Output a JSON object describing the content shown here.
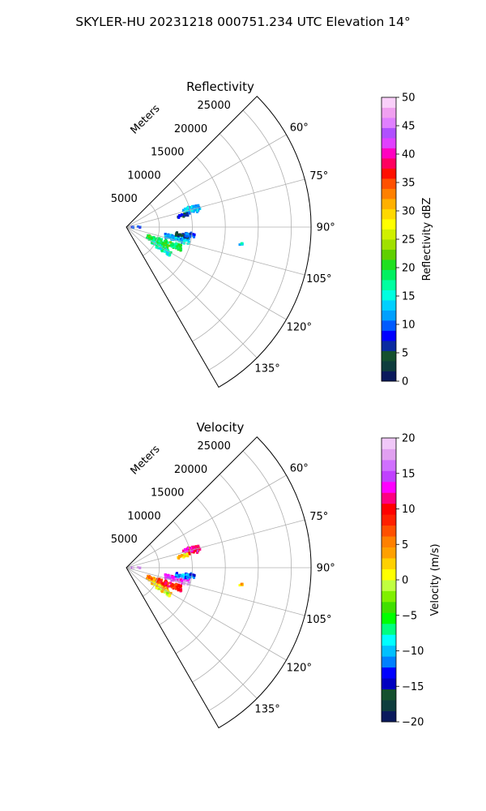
{
  "figure": {
    "suptitle": "SKYLER-HU  20231218  000751.234 UTC Elevation 14°"
  },
  "chart_data": [
    {
      "type": "polar-ppi",
      "title": "Reflectivity",
      "radial_label": "Meters",
      "theta_range_deg": [
        45,
        150
      ],
      "r_max": 28000,
      "r_ticks": [
        5000,
        10000,
        15000,
        20000,
        25000
      ],
      "r_tick_labels": [
        "5000",
        "10000",
        "15000",
        "20000",
        "25000"
      ],
      "theta_ticks": [
        60,
        75,
        90,
        105,
        120,
        135
      ],
      "theta_tick_labels": [
        "60°",
        "75°",
        "90°",
        "105°",
        "120°",
        "135°"
      ],
      "grid": true,
      "colorbar": {
        "label": "Reflectivity dBZ",
        "min": 0,
        "max": 50,
        "ticks": [
          0,
          5,
          10,
          15,
          20,
          25,
          30,
          35,
          40,
          45,
          50
        ],
        "tick_labels": [
          "0",
          "5",
          "10",
          "15",
          "20",
          "25",
          "30",
          "35",
          "40",
          "45",
          "50"
        ],
        "colors": [
          "#0a1a5c",
          "#0f3d3d",
          "#14502e",
          "#0a2aa0",
          "#0000ff",
          "#005bff",
          "#00a0ff",
          "#00d0ff",
          "#00ffe0",
          "#00ffa0",
          "#00f060",
          "#20e020",
          "#60d000",
          "#a0e000",
          "#d0f000",
          "#ffff00",
          "#ffd800",
          "#ffb000",
          "#ff8000",
          "#ff5000",
          "#ff1000",
          "#ff0060",
          "#ff00c0",
          "#e040ff",
          "#b050ff",
          "#e080ff",
          "#f0a0f0",
          "#fad0fa"
        ]
      },
      "echo_regions": [
        {
          "r_range": [
            9000,
            11500
          ],
          "theta_range": [
            72,
            78
          ],
          "value": 12
        },
        {
          "r_range": [
            7500,
            9500
          ],
          "theta_range": [
            77,
            80
          ],
          "value": 6
        },
        {
          "r_range": [
            500,
            2200
          ],
          "theta_range": [
            88,
            92
          ],
          "value": 9
        },
        {
          "r_range": [
            3500,
            7000
          ],
          "theta_range": [
            110,
            120
          ],
          "value": 20
        },
        {
          "r_range": [
            5000,
            9000
          ],
          "theta_range": [
            108,
            114
          ],
          "value": 19
        },
        {
          "r_range": [
            6000,
            10000
          ],
          "theta_range": [
            100,
            106
          ],
          "value": 13
        },
        {
          "r_range": [
            7500,
            9500
          ],
          "theta_range": [
            96,
            100
          ],
          "value": 4
        },
        {
          "r_range": [
            9000,
            10500
          ],
          "theta_range": [
            95,
            99
          ],
          "value": 10
        },
        {
          "r_range": [
            4500,
            8000
          ],
          "theta_range": [
            118,
            124
          ],
          "value": 16
        },
        {
          "r_range": [
            17400,
            17800
          ],
          "theta_range": [
            98,
            99.5
          ],
          "value": 14
        }
      ]
    },
    {
      "type": "polar-ppi",
      "title": "Velocity",
      "radial_label": "Meters",
      "theta_range_deg": [
        45,
        150
      ],
      "r_max": 28000,
      "r_ticks": [
        5000,
        10000,
        15000,
        20000,
        25000
      ],
      "r_tick_labels": [
        "5000",
        "10000",
        "15000",
        "20000",
        "25000"
      ],
      "theta_ticks": [
        60,
        75,
        90,
        105,
        120,
        135
      ],
      "theta_tick_labels": [
        "60°",
        "75°",
        "90°",
        "105°",
        "120°",
        "135°"
      ],
      "grid": true,
      "colorbar": {
        "label": "Velocity (m/s)",
        "min": -20,
        "max": 20,
        "ticks": [
          -20,
          -15,
          -10,
          -5,
          0,
          5,
          10,
          15,
          20
        ],
        "tick_labels": [
          "−20",
          "−15",
          "−10",
          "−5",
          "0",
          "5",
          "10",
          "15",
          "20"
        ],
        "colors": [
          "#0a1a5c",
          "#0f3d3d",
          "#14502e",
          "#0000c0",
          "#0000ff",
          "#0080ff",
          "#00c0ff",
          "#00ffff",
          "#00ff80",
          "#00ff00",
          "#40e000",
          "#80f000",
          "#c0ff40",
          "#ffff00",
          "#ffd000",
          "#ffa000",
          "#ff8000",
          "#ff5000",
          "#ff2000",
          "#ff0000",
          "#ff0080",
          "#ff00ff",
          "#c040ff",
          "#d070ff",
          "#e0a0f0",
          "#f0c8f8"
        ]
      },
      "echo_regions": [
        {
          "r_range": [
            9000,
            11500
          ],
          "theta_range": [
            72,
            78
          ],
          "value": 11
        },
        {
          "r_range": [
            7500,
            9500
          ],
          "theta_range": [
            77,
            80
          ],
          "value": 2
        },
        {
          "r_range": [
            500,
            2200
          ],
          "theta_range": [
            88,
            92
          ],
          "value": 17
        },
        {
          "r_range": [
            3500,
            7000
          ],
          "theta_range": [
            110,
            120
          ],
          "value": 5
        },
        {
          "r_range": [
            5000,
            9000
          ],
          "theta_range": [
            108,
            114
          ],
          "value": 9
        },
        {
          "r_range": [
            6000,
            10000
          ],
          "theta_range": [
            100,
            106
          ],
          "value": 15
        },
        {
          "r_range": [
            7500,
            9500
          ],
          "theta_range": [
            96,
            100
          ],
          "value": -11
        },
        {
          "r_range": [
            9000,
            10500
          ],
          "theta_range": [
            95,
            99
          ],
          "value": -12
        },
        {
          "r_range": [
            4500,
            8000
          ],
          "theta_range": [
            118,
            124
          ],
          "value": 1
        },
        {
          "r_range": [
            17400,
            17800
          ],
          "theta_range": [
            98,
            99.5
          ],
          "value": 3
        }
      ]
    }
  ]
}
